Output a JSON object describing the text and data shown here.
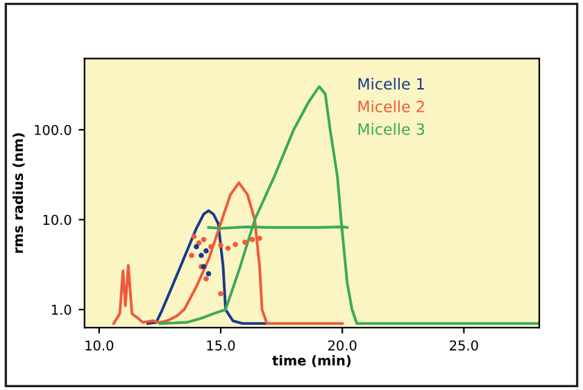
{
  "chart_data": {
    "type": "line",
    "xlabel": "time (min)",
    "ylabel": "rms radius (nm)",
    "log": "y",
    "xlim": [
      9.4,
      28.1
    ],
    "xticks": [
      {
        "value": 10,
        "label": "10.0"
      },
      {
        "value": 15,
        "label": "15.0"
      },
      {
        "value": 20,
        "label": "20.0"
      },
      {
        "value": 25,
        "label": "25.0"
      }
    ],
    "ylim": [
      0.63,
      620
    ],
    "yticks": [
      {
        "value": 1,
        "label": "1.0"
      },
      {
        "value": 10,
        "label": "10.0"
      },
      {
        "value": 100,
        "label": "100.0"
      }
    ],
    "grid": false,
    "legend": "top right",
    "series": [
      {
        "name": "Micelle 1",
        "color": "#1a3a8c",
        "x": [
          12.0,
          12.35,
          12.6,
          13.0,
          13.5,
          14.0,
          14.3,
          14.5,
          14.7,
          14.9,
          15.1,
          15.2,
          15.5,
          15.9,
          16.9
        ],
        "values": [
          0.7,
          0.72,
          1.0,
          1.8,
          3.8,
          8,
          11.5,
          12.6,
          11.5,
          9,
          3,
          1.0,
          0.75,
          0.7,
          0.7
        ]
      },
      {
        "name": "Micelle 2",
        "color": "#f05a3a",
        "x": [
          10.6,
          10.85,
          10.98,
          11.08,
          11.2,
          11.35,
          11.6,
          11.8,
          12.2,
          12.5,
          12.8,
          13.2,
          13.5,
          14.0,
          14.5,
          15.05,
          15.4,
          15.75,
          16.1,
          16.4,
          16.6,
          16.7,
          16.9,
          20.0
        ],
        "values": [
          0.7,
          0.9,
          2.7,
          1.1,
          3.1,
          0.9,
          0.8,
          0.72,
          0.75,
          0.72,
          0.75,
          0.85,
          1.0,
          1.8,
          3.6,
          10,
          19,
          25.7,
          19,
          10,
          3,
          1.0,
          0.7,
          0.7
        ]
      },
      {
        "name": "Micelle 3",
        "color": "#3aaa5a",
        "x": [
          12.5,
          13.6,
          14.2,
          14.7,
          15.2,
          15.8,
          16.4,
          17.2,
          18.0,
          18.6,
          19.05,
          19.3,
          19.5,
          19.8,
          19.95,
          20.2,
          20.4,
          20.6,
          28.1
        ],
        "values": [
          0.7,
          0.72,
          0.8,
          0.9,
          1.0,
          3,
          10,
          30,
          100,
          200,
          302,
          250,
          100,
          30,
          10,
          2,
          1.0,
          0.7,
          0.7
        ]
      },
      {
        "color": "#3aaa5a",
        "x": [
          14.5,
          15,
          16,
          17,
          18,
          19,
          20,
          20.2
        ],
        "values": [
          8.2,
          8.0,
          8.3,
          8.2,
          8.2,
          8.2,
          8.3,
          8.2
        ]
      },
      {
        "type": "scatter",
        "color": "#f05a3a",
        "x": [
          13.9,
          14.1,
          14.3,
          14.6,
          15.0,
          15.3,
          15.6,
          16.0,
          16.3,
          16.6,
          14.2,
          14.4,
          13.8,
          15.0
        ],
        "values": [
          6.5,
          5.5,
          6,
          5,
          5.2,
          4.8,
          5.3,
          5.6,
          6,
          6.2,
          3,
          2.2,
          4,
          1.5
        ]
      },
      {
        "type": "scatter",
        "color": "#1a3a8c",
        "x": [
          14.0,
          14.2,
          14.3,
          14.4,
          14.5
        ],
        "values": [
          5,
          4,
          3,
          4.5,
          2.5
        ]
      }
    ]
  }
}
